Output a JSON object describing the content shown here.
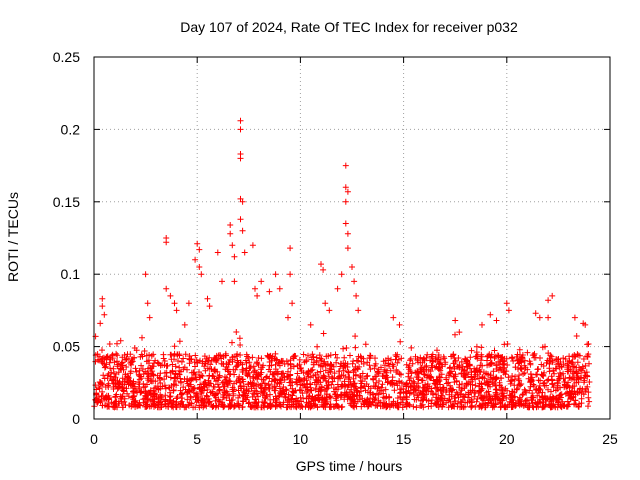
{
  "chart_data": {
    "type": "scatter",
    "title": "Day 107 of 2024, Rate Of TEC Index for receiver p032",
    "xlabel": "GPS time / hours",
    "ylabel": "ROTI / TECUs",
    "xlim": [
      0,
      25
    ],
    "ylim": [
      0,
      0.25
    ],
    "x_ticks": [
      0,
      5,
      10,
      15,
      20,
      25
    ],
    "x_tick_labels": [
      "0",
      "5",
      "10",
      "15",
      "20",
      "25"
    ],
    "y_ticks": [
      0,
      0.05,
      0.1,
      0.15,
      0.2,
      0.25
    ],
    "y_tick_labels": [
      "0",
      "0.05",
      "0.1",
      "0.15",
      "0.2",
      "0.25"
    ],
    "grid": true,
    "marker": "+",
    "series_color": "#ff0000",
    "baseline_band": {
      "x_range": [
        0,
        24
      ],
      "typical_min": 0.008,
      "typical_max": 0.045
    },
    "notable_points": [
      {
        "x": 0.4,
        "y": 0.083
      },
      {
        "x": 0.4,
        "y": 0.078
      },
      {
        "x": 0.5,
        "y": 0.072
      },
      {
        "x": 0.3,
        "y": 0.066
      },
      {
        "x": 2.5,
        "y": 0.1
      },
      {
        "x": 2.6,
        "y": 0.08
      },
      {
        "x": 2.7,
        "y": 0.07
      },
      {
        "x": 3.5,
        "y": 0.125
      },
      {
        "x": 3.5,
        "y": 0.122
      },
      {
        "x": 3.5,
        "y": 0.09
      },
      {
        "x": 3.7,
        "y": 0.085
      },
      {
        "x": 3.9,
        "y": 0.08
      },
      {
        "x": 4.0,
        "y": 0.075
      },
      {
        "x": 4.4,
        "y": 0.065
      },
      {
        "x": 4.6,
        "y": 0.08
      },
      {
        "x": 4.9,
        "y": 0.11
      },
      {
        "x": 5.0,
        "y": 0.121
      },
      {
        "x": 5.1,
        "y": 0.117
      },
      {
        "x": 5.1,
        "y": 0.105
      },
      {
        "x": 5.2,
        "y": 0.1
      },
      {
        "x": 5.5,
        "y": 0.083
      },
      {
        "x": 5.6,
        "y": 0.078
      },
      {
        "x": 6.0,
        "y": 0.115
      },
      {
        "x": 6.2,
        "y": 0.095
      },
      {
        "x": 6.6,
        "y": 0.134
      },
      {
        "x": 6.6,
        "y": 0.128
      },
      {
        "x": 6.7,
        "y": 0.12
      },
      {
        "x": 6.8,
        "y": 0.112
      },
      {
        "x": 6.8,
        "y": 0.095
      },
      {
        "x": 7.1,
        "y": 0.206
      },
      {
        "x": 7.1,
        "y": 0.2
      },
      {
        "x": 7.1,
        "y": 0.183
      },
      {
        "x": 7.1,
        "y": 0.18
      },
      {
        "x": 7.1,
        "y": 0.152
      },
      {
        "x": 7.2,
        "y": 0.15
      },
      {
        "x": 7.1,
        "y": 0.138
      },
      {
        "x": 7.2,
        "y": 0.13
      },
      {
        "x": 7.3,
        "y": 0.115
      },
      {
        "x": 7.7,
        "y": 0.12
      },
      {
        "x": 7.8,
        "y": 0.09
      },
      {
        "x": 7.9,
        "y": 0.085
      },
      {
        "x": 8.1,
        "y": 0.095
      },
      {
        "x": 8.5,
        "y": 0.088
      },
      {
        "x": 8.8,
        "y": 0.1
      },
      {
        "x": 9.0,
        "y": 0.09
      },
      {
        "x": 9.5,
        "y": 0.118
      },
      {
        "x": 9.5,
        "y": 0.1
      },
      {
        "x": 9.6,
        "y": 0.08
      },
      {
        "x": 9.4,
        "y": 0.07
      },
      {
        "x": 10.5,
        "y": 0.065
      },
      {
        "x": 11.0,
        "y": 0.107
      },
      {
        "x": 11.1,
        "y": 0.103
      },
      {
        "x": 11.2,
        "y": 0.08
      },
      {
        "x": 11.4,
        "y": 0.075
      },
      {
        "x": 11.8,
        "y": 0.09
      },
      {
        "x": 12.0,
        "y": 0.1
      },
      {
        "x": 12.2,
        "y": 0.175
      },
      {
        "x": 12.2,
        "y": 0.16
      },
      {
        "x": 12.3,
        "y": 0.157
      },
      {
        "x": 12.2,
        "y": 0.15
      },
      {
        "x": 12.2,
        "y": 0.135
      },
      {
        "x": 12.3,
        "y": 0.128
      },
      {
        "x": 12.3,
        "y": 0.118
      },
      {
        "x": 12.5,
        "y": 0.105
      },
      {
        "x": 12.6,
        "y": 0.095
      },
      {
        "x": 12.7,
        "y": 0.085
      },
      {
        "x": 12.8,
        "y": 0.075
      },
      {
        "x": 14.5,
        "y": 0.07
      },
      {
        "x": 14.8,
        "y": 0.065
      },
      {
        "x": 17.5,
        "y": 0.068
      },
      {
        "x": 17.7,
        "y": 0.06
      },
      {
        "x": 18.8,
        "y": 0.065
      },
      {
        "x": 19.2,
        "y": 0.072
      },
      {
        "x": 19.5,
        "y": 0.068
      },
      {
        "x": 20.0,
        "y": 0.08
      },
      {
        "x": 20.1,
        "y": 0.075
      },
      {
        "x": 21.4,
        "y": 0.073
      },
      {
        "x": 21.6,
        "y": 0.07
      },
      {
        "x": 22.0,
        "y": 0.082
      },
      {
        "x": 22.2,
        "y": 0.085
      },
      {
        "x": 22.0,
        "y": 0.07
      },
      {
        "x": 23.3,
        "y": 0.07
      },
      {
        "x": 23.7,
        "y": 0.066
      },
      {
        "x": 23.8,
        "y": 0.065
      }
    ]
  }
}
